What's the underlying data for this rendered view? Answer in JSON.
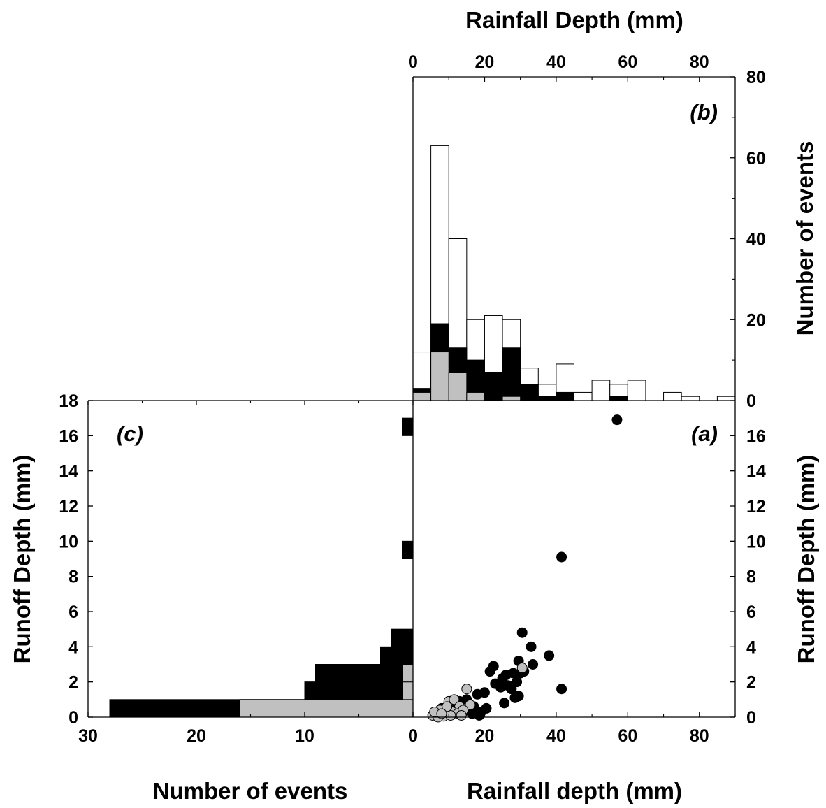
{
  "colors": {
    "black_series": "#000000",
    "gray_series": "#c0c0c0",
    "all_events": "#ffffff",
    "outline": "#000000"
  },
  "chart_data": [
    {
      "panel": "(a)",
      "type": "scatter",
      "xlabel": "Rainfall depth (mm)",
      "ylabel": "Runoff Depth (mm)",
      "xlim": [
        0,
        90
      ],
      "ylim": [
        0,
        18
      ],
      "xticks": [
        "0",
        "20",
        "40",
        "60",
        "80"
      ],
      "yticks": [
        "0",
        "2",
        "4",
        "6",
        "8",
        "10",
        "12",
        "14",
        "16"
      ],
      "series": [
        {
          "color": "#000000",
          "points": [
            [
              57,
              16.9
            ],
            [
              41.5,
              9.1
            ],
            [
              30.5,
              4.8
            ],
            [
              33,
              4.0
            ],
            [
              38,
              3.5
            ],
            [
              29.5,
              3.2
            ],
            [
              33.5,
              3.0
            ],
            [
              22.5,
              2.9
            ],
            [
              21.5,
              2.6
            ],
            [
              31,
              2.6
            ],
            [
              26,
              2.4
            ],
            [
              25,
              2.2
            ],
            [
              28,
              2.5
            ],
            [
              30,
              2.5
            ],
            [
              23,
              1.9
            ],
            [
              24.5,
              1.7
            ],
            [
              26.5,
              1.8
            ],
            [
              29,
              2.0
            ],
            [
              27.5,
              1.6
            ],
            [
              41.5,
              1.6
            ],
            [
              29.5,
              1.2
            ],
            [
              28.5,
              1.1
            ],
            [
              18,
              1.3
            ],
            [
              20,
              1.4
            ],
            [
              15,
              1.0
            ],
            [
              13,
              0.9
            ],
            [
              25.5,
              0.8
            ],
            [
              20.5,
              0.5
            ],
            [
              17,
              0.6
            ],
            [
              19,
              0.3
            ],
            [
              16.5,
              0.2
            ],
            [
              18.5,
              0.1
            ],
            [
              12,
              0.4
            ],
            [
              10,
              0.7
            ],
            [
              9,
              0.3
            ],
            [
              8,
              0.5
            ],
            [
              14,
              0.3
            ],
            [
              11,
              0.2
            ],
            [
              7.5,
              0.1
            ],
            [
              6.5,
              0.3
            ]
          ]
        },
        {
          "color": "#c0c0c0",
          "points": [
            [
              15,
              1.6
            ],
            [
              30.5,
              2.8
            ],
            [
              10,
              0.9
            ],
            [
              11.5,
              1.0
            ],
            [
              13,
              0.6
            ],
            [
              16,
              0.7
            ],
            [
              9,
              0.3
            ],
            [
              7.5,
              0.4
            ],
            [
              6.5,
              0.2
            ],
            [
              5.5,
              0.1
            ],
            [
              8.5,
              0.05
            ],
            [
              11,
              0.3
            ],
            [
              12.5,
              0.2
            ],
            [
              14,
              0.4
            ],
            [
              10.5,
              0.1
            ],
            [
              7,
              0.0
            ],
            [
              9.5,
              0.6
            ],
            [
              13.5,
              0.1
            ],
            [
              6,
              0.3
            ],
            [
              8,
              0.2
            ]
          ]
        }
      ]
    },
    {
      "panel": "(b)",
      "type": "bar",
      "xlabel": "Rainfall Depth (mm)",
      "ylabel": "Number of events",
      "xlim": [
        0,
        90
      ],
      "ylim": [
        0,
        80
      ],
      "xticks": [
        "0",
        "20",
        "40",
        "60",
        "80"
      ],
      "yticks": [
        "0",
        "20",
        "40",
        "60",
        "80"
      ],
      "bin_edges": [
        0,
        5,
        10,
        15,
        20,
        25,
        30,
        35,
        40,
        45,
        50,
        55,
        60,
        65,
        70,
        75,
        80,
        85,
        90
      ],
      "series": [
        {
          "color": "#ffffff",
          "values": [
            12,
            63,
            40,
            20,
            21,
            20,
            8,
            4,
            9,
            2,
            5,
            4,
            5,
            0,
            2,
            1,
            0,
            1
          ]
        },
        {
          "color": "#000000",
          "values": [
            3,
            19,
            13,
            10,
            7,
            13,
            4,
            1,
            2,
            0,
            0,
            1,
            0,
            0,
            0,
            0,
            0,
            0
          ]
        },
        {
          "color": "#c0c0c0",
          "values": [
            2,
            12,
            7,
            2,
            0,
            1,
            0,
            0,
            0,
            0,
            0,
            0,
            0,
            0,
            0,
            0,
            0,
            0
          ]
        }
      ]
    },
    {
      "panel": "(c)",
      "type": "bar",
      "orientation": "horizontal",
      "xlabel": "Number of events",
      "ylabel": "Runoff Depth (mm)",
      "xlim": [
        30,
        0
      ],
      "ylim": [
        0,
        18
      ],
      "xticks": [
        "30",
        "20",
        "10",
        "0"
      ],
      "yticks": [
        "0",
        "2",
        "4",
        "6",
        "8",
        "10",
        "12",
        "14",
        "16",
        "18"
      ],
      "bins": [
        [
          0,
          1
        ],
        [
          1,
          2
        ],
        [
          2,
          3
        ],
        [
          3,
          4
        ],
        [
          4,
          5
        ],
        [
          9,
          10
        ],
        [
          16,
          17
        ]
      ],
      "series": [
        {
          "color": "#000000",
          "values": [
            28,
            10,
            9,
            3,
            2,
            1,
            1
          ]
        },
        {
          "color": "#c0c0c0",
          "values": [
            16,
            1,
            1,
            0,
            0,
            0,
            0
          ]
        }
      ]
    }
  ]
}
